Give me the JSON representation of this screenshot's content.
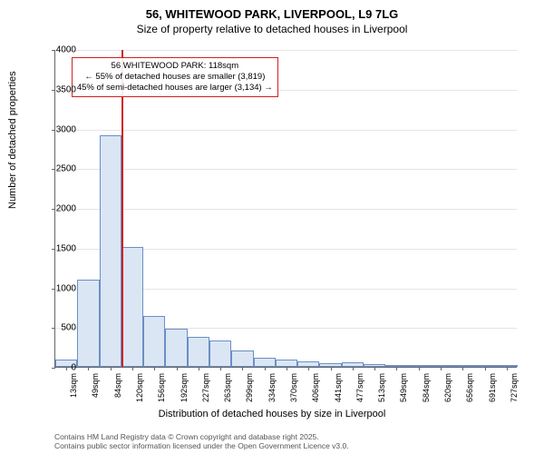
{
  "chart": {
    "type": "histogram",
    "title": "56, WHITEWOOD PARK, LIVERPOOL, L9 7LG",
    "subtitle": "Size of property relative to detached houses in Liverpool",
    "y_axis": {
      "label": "Number of detached properties",
      "min": 0,
      "max": 4000,
      "ticks": [
        0,
        500,
        1000,
        1500,
        2000,
        2500,
        3000,
        3500,
        4000
      ]
    },
    "x_axis": {
      "label": "Distribution of detached houses by size in Liverpool",
      "tick_labels": [
        "13sqm",
        "49sqm",
        "84sqm",
        "120sqm",
        "156sqm",
        "192sqm",
        "227sqm",
        "263sqm",
        "299sqm",
        "334sqm",
        "370sqm",
        "406sqm",
        "441sqm",
        "477sqm",
        "513sqm",
        "549sqm",
        "584sqm",
        "620sqm",
        "656sqm",
        "691sqm",
        "727sqm"
      ]
    },
    "bars": {
      "fill_color": "#dbe6f4",
      "stroke_color": "#6a8fc5",
      "values": [
        90,
        1100,
        2920,
        1510,
        640,
        480,
        380,
        330,
        210,
        120,
        90,
        70,
        50,
        60,
        30,
        15,
        10,
        8,
        5,
        5,
        5
      ]
    },
    "marker": {
      "color": "#d02020",
      "bin_index_left_edge": 3,
      "annotation": {
        "line1": "56 WHITEWOOD PARK: 118sqm",
        "line2": "← 55% of detached houses are smaller (3,819)",
        "line3": "45% of semi-detached houses are larger (3,134) →"
      }
    },
    "background_color": "#ffffff",
    "grid_color": "#e5e5e5",
    "footer": {
      "line1": "Contains HM Land Registry data © Crown copyright and database right 2025.",
      "line2": "Contains public sector information licensed under the Open Government Licence v3.0."
    },
    "title_fontsize": 13,
    "subtitle_fontsize": 12,
    "axis_label_fontsize": 11,
    "tick_fontsize": 10
  }
}
